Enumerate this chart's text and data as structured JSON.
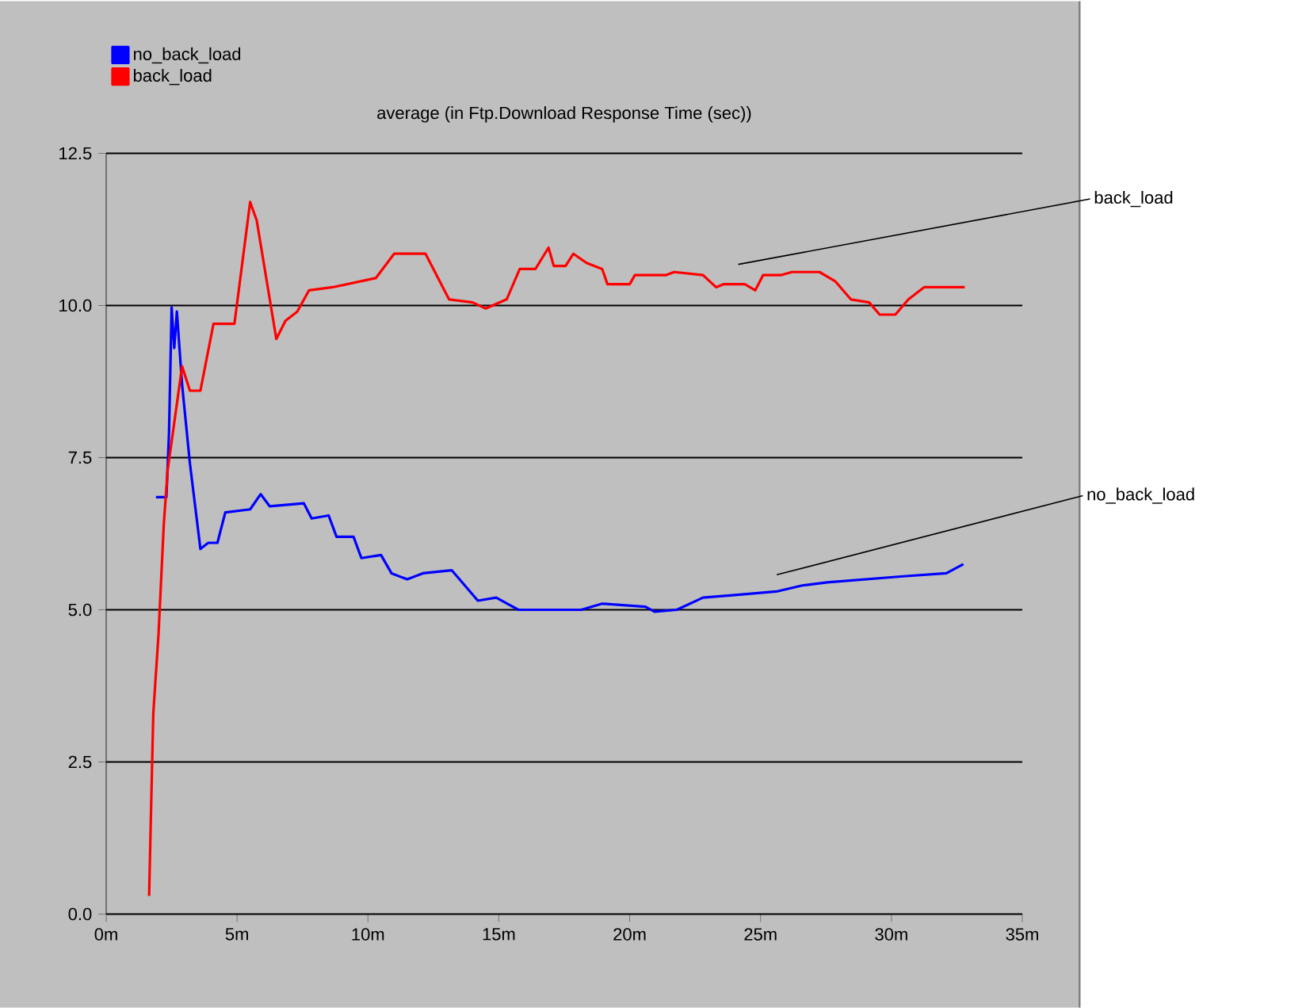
{
  "chart_data": {
    "type": "line",
    "title": "average (in Ftp.Download Response Time (sec))",
    "xlim": [
      0,
      35
    ],
    "ylim": [
      0,
      12.5
    ],
    "xticks": [
      {
        "value": 0,
        "label": "0m"
      },
      {
        "value": 5,
        "label": "5m"
      },
      {
        "value": 10,
        "label": "10m"
      },
      {
        "value": 15,
        "label": "15m"
      },
      {
        "value": 20,
        "label": "20m"
      },
      {
        "value": 25,
        "label": "25m"
      },
      {
        "value": 30,
        "label": "30m"
      },
      {
        "value": 35,
        "label": "35m"
      }
    ],
    "yticks": [
      {
        "value": 0,
        "label": "0.0"
      },
      {
        "value": 2.5,
        "label": "2.5"
      },
      {
        "value": 5,
        "label": "5.0"
      },
      {
        "value": 7.5,
        "label": "7.5"
      },
      {
        "value": 10,
        "label": "10.0"
      },
      {
        "value": 12.5,
        "label": "12.5"
      }
    ],
    "grid": "y",
    "legend": "top left",
    "marker": "none",
    "line_style": "solid",
    "series": [
      {
        "name": "no_back_load",
        "color": "#0000ff",
        "x": [
          1.9,
          2.3,
          2.4,
          2.5,
          2.6,
          2.7,
          2.9,
          3.2,
          3.6,
          3.9,
          4.25,
          4.55,
          5.5,
          5.9,
          6.25,
          7.55,
          7.85,
          8.5,
          8.8,
          9.45,
          9.75,
          10.5,
          10.9,
          11.5,
          12.1,
          13.2,
          14.2,
          14.9,
          15.75,
          18.15,
          18.95,
          20.6,
          20.95,
          21.8,
          22.8,
          24.2,
          25.6,
          26.6,
          27.55,
          30.45,
          32.1,
          32.75
        ],
        "values": [
          6.85,
          6.85,
          7.9,
          9.97,
          9.3,
          9.9,
          8.7,
          7.4,
          6.0,
          6.1,
          6.1,
          6.6,
          6.65,
          6.9,
          6.7,
          6.75,
          6.5,
          6.55,
          6.2,
          6.2,
          5.85,
          5.9,
          5.6,
          5.5,
          5.6,
          5.65,
          5.15,
          5.2,
          5.0,
          5.0,
          5.1,
          5.05,
          4.97,
          5.0,
          5.2,
          5.25,
          5.3,
          5.4,
          5.45,
          5.55,
          5.6,
          5.75
        ]
      },
      {
        "name": "back_load",
        "color": "#ff0000",
        "x": [
          1.64,
          1.7,
          1.8,
          2.0,
          2.2,
          2.35,
          2.9,
          3.2,
          3.6,
          4.1,
          4.9,
          5.5,
          5.75,
          6.5,
          6.85,
          7.3,
          7.75,
          8.65,
          10.3,
          11.0,
          12.2,
          13.1,
          14.0,
          14.5,
          15.3,
          15.8,
          16.4,
          16.9,
          17.1,
          17.55,
          17.85,
          18.35,
          18.95,
          19.15,
          20.0,
          20.2,
          21.4,
          21.7,
          22.8,
          23.3,
          23.6,
          24.4,
          24.8,
          25.1,
          25.8,
          26.2,
          27.25,
          27.85,
          28.45,
          29.15,
          29.55,
          30.15,
          30.65,
          31.25,
          31.6,
          32.8
        ],
        "values": [
          0.3,
          1.45,
          3.3,
          4.6,
          6.4,
          7.3,
          9.0,
          8.6,
          8.6,
          9.7,
          9.7,
          11.7,
          11.4,
          9.45,
          9.75,
          9.9,
          10.25,
          10.3,
          10.45,
          10.85,
          10.85,
          10.1,
          10.05,
          9.95,
          10.1,
          10.6,
          10.6,
          10.95,
          10.65,
          10.65,
          10.85,
          10.7,
          10.6,
          10.35,
          10.35,
          10.5,
          10.5,
          10.55,
          10.5,
          10.3,
          10.35,
          10.35,
          10.25,
          10.5,
          10.5,
          10.55,
          10.55,
          10.4,
          10.1,
          10.05,
          9.85,
          9.85,
          10.1,
          10.3,
          10.3,
          10.3
        ]
      }
    ],
    "annotations": [
      "back_load",
      "no_back_load"
    ]
  }
}
